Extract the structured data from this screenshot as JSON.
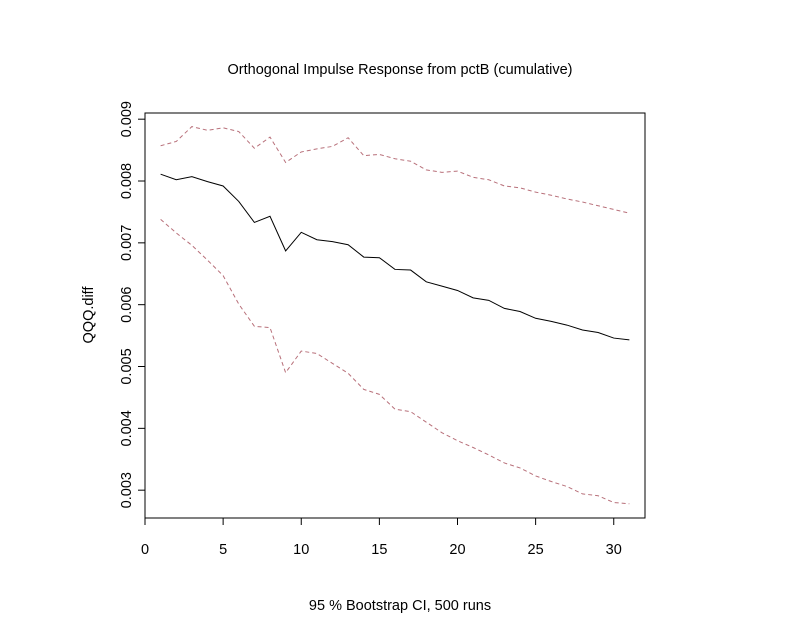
{
  "chart_data": {
    "type": "line",
    "title": "Orthogonal Impulse Response from pctB (cumulative)",
    "xlabel": "95 % Bootstrap CI,  500 runs",
    "ylabel": "QQQ.diff",
    "xlim": [
      0,
      32
    ],
    "ylim": [
      0.00255,
      0.0091
    ],
    "x_ticks": [
      0,
      5,
      10,
      15,
      20,
      25,
      30
    ],
    "x_tick_labels": [
      "0",
      "5",
      "10",
      "15",
      "20",
      "25",
      "30"
    ],
    "y_ticks": [
      0.003,
      0.004,
      0.005,
      0.006,
      0.007,
      0.008,
      0.009
    ],
    "y_tick_labels": [
      "0.003",
      "0.004",
      "0.005",
      "0.006",
      "0.007",
      "0.008",
      "0.009"
    ],
    "grid": false,
    "x": [
      1,
      2,
      3,
      4,
      5,
      6,
      7,
      8,
      9,
      10,
      11,
      12,
      13,
      14,
      15,
      16,
      17,
      18,
      19,
      20,
      21,
      22,
      23,
      24,
      25,
      26,
      27,
      28,
      29,
      30,
      31
    ],
    "series": [
      {
        "role": "response",
        "color": "#000000",
        "dashed": false,
        "values": [
          0.00811,
          0.00802,
          0.00807,
          0.00799,
          0.00792,
          0.00767,
          0.00733,
          0.00743,
          0.00687,
          0.00717,
          0.00705,
          0.00702,
          0.00697,
          0.00677,
          0.00676,
          0.00657,
          0.00656,
          0.00637,
          0.0063,
          0.00623,
          0.00611,
          0.00607,
          0.00594,
          0.00589,
          0.00578,
          0.00573,
          0.00567,
          0.00559,
          0.00555,
          0.00546,
          0.00543
        ]
      },
      {
        "role": "upper",
        "color": "#b8707a",
        "dashed": true,
        "values": [
          0.00857,
          0.00864,
          0.00888,
          0.00882,
          0.00886,
          0.0088,
          0.00853,
          0.00871,
          0.0083,
          0.00847,
          0.00852,
          0.00856,
          0.0087,
          0.00841,
          0.00843,
          0.00836,
          0.00832,
          0.00818,
          0.00814,
          0.00816,
          0.00806,
          0.00802,
          0.00792,
          0.00789,
          0.00782,
          0.00777,
          0.00771,
          0.00766,
          0.0076,
          0.00754,
          0.00748
        ]
      },
      {
        "role": "lower",
        "color": "#b8707a",
        "dashed": true,
        "values": [
          0.00738,
          0.00716,
          0.00696,
          0.00672,
          0.00647,
          0.00601,
          0.00565,
          0.00563,
          0.0049,
          0.00525,
          0.00521,
          0.00505,
          0.00489,
          0.00463,
          0.00455,
          0.00431,
          0.00427,
          0.0041,
          0.00393,
          0.0038,
          0.00369,
          0.00357,
          0.00344,
          0.00336,
          0.00323,
          0.00314,
          0.00306,
          0.00294,
          0.00291,
          0.0028,
          0.00278
        ]
      }
    ]
  }
}
